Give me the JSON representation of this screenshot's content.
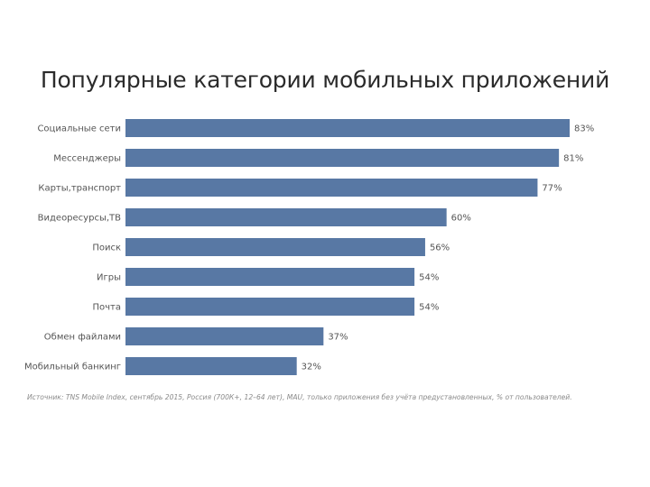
{
  "chart_data": {
    "type": "bar",
    "orientation": "horizontal",
    "title": "Популярные категории мобильных приложений",
    "categories": [
      "Социальные сети",
      "Мессенджеры",
      "Карты,транспорт",
      "Видеоресурсы,ТВ",
      "Поиск",
      "Игры",
      "Почта",
      "Обмен файлами",
      "Мобильный банкинг"
    ],
    "values": [
      83,
      81,
      77,
      60,
      56,
      54,
      54,
      37,
      32
    ],
    "value_labels": [
      "83%",
      "81%",
      "77%",
      "60%",
      "56%",
      "54%",
      "54%",
      "37%",
      "32%"
    ],
    "unit": "%",
    "xlim": [
      0,
      83
    ],
    "color": "#5878a4",
    "grid": false,
    "legend": "none"
  },
  "source_note": "Источник: TNS Mobile Index, сентябрь 2015, Россия (700К+, 12–64 лет), MAU, только приложения без учёта предустановленных, % от пользователей."
}
